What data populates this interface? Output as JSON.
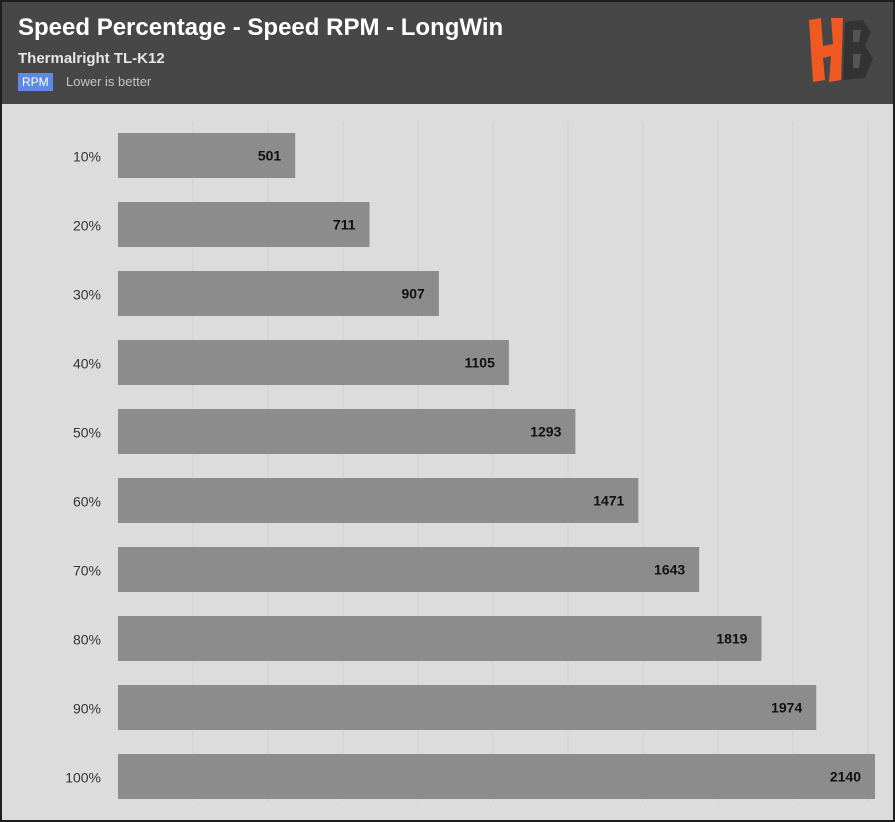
{
  "header": {
    "title": "Speed Percentage - Speed RPM - LongWin",
    "subtitle": "Thermalright TL-K12",
    "badge": "RPM",
    "note": "Lower is better"
  },
  "colors": {
    "header_bg": "#474747",
    "plot_bg": "#dcdcdc",
    "bar": "#8c8c8c",
    "badge": "#5b8be3",
    "logo_orange": "#f05a22",
    "logo_dark": "#333333",
    "grid": "#cfcfcf"
  },
  "chart_data": {
    "type": "bar",
    "orientation": "horizontal",
    "categories": [
      "10%",
      "20%",
      "30%",
      "40%",
      "50%",
      "60%",
      "70%",
      "80%",
      "90%",
      "100%"
    ],
    "values": [
      501,
      711,
      907,
      1105,
      1293,
      1471,
      1643,
      1819,
      1974,
      2140
    ],
    "title": "Speed Percentage - Speed RPM - LongWin",
    "subtitle": "Thermalright TL-K12",
    "xlabel": "",
    "ylabel": "",
    "xlim": [
      0,
      2140
    ],
    "grid": true,
    "legend": "none"
  }
}
